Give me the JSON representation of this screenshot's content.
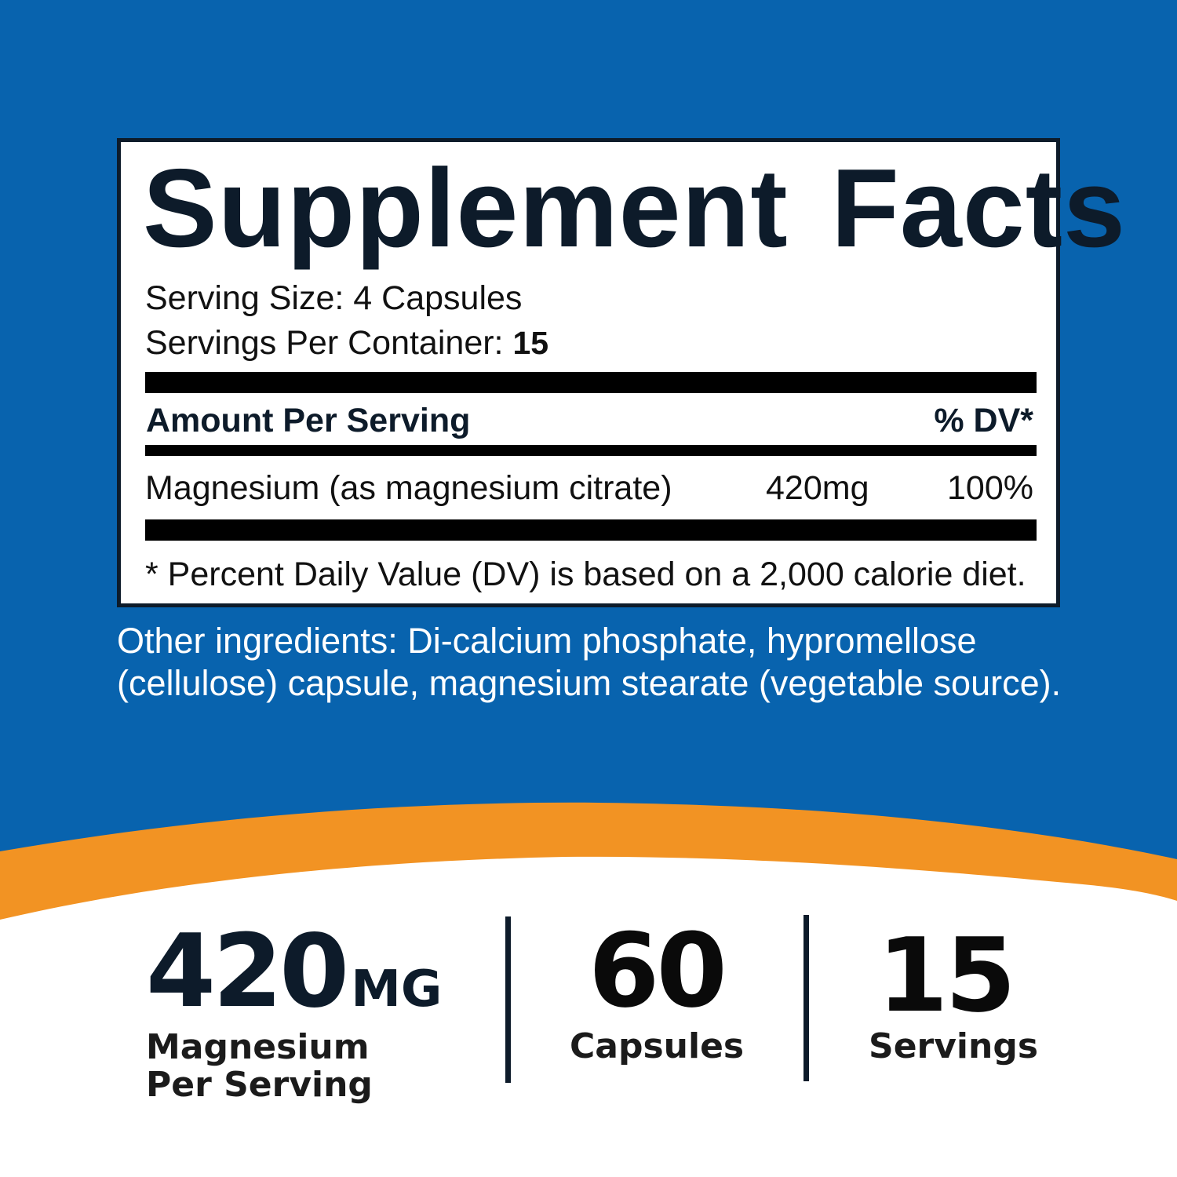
{
  "colors": {
    "background_blue": "#0863AE",
    "accent_orange": "#F29323",
    "panel_border": "#0D1B2A",
    "text_dark": "#0D1B2A",
    "text_white": "#FFFFFF"
  },
  "facts": {
    "title": "Supplement  Facts",
    "serving_size": "Serving Size: 4 Capsules",
    "servings_per_container_label": "Servings Per Container: ",
    "servings_per_container_value": "15",
    "amount_per_serving": "Amount Per Serving",
    "dv_header": "% DV*",
    "nutrients": [
      {
        "name": "Magnesium (as magnesium citrate)",
        "amount": "420mg",
        "dv": "100%"
      }
    ],
    "footnote": "* Percent Daily Value (DV) is based on a 2,000 calorie diet."
  },
  "other_ingredients": {
    "line1": "Other ingredients: Di-calcium phosphate, hypromellose",
    "line2": "(cellulose) capsule, magnesium stearate (vegetable source)."
  },
  "stats": [
    {
      "number": "420",
      "unit": "MG",
      "label_line1": "Magnesium",
      "label_line2": "Per Serving"
    },
    {
      "number": "60",
      "label_line1": "Capsules"
    },
    {
      "number": "15",
      "label_line1": "Servings"
    }
  ]
}
